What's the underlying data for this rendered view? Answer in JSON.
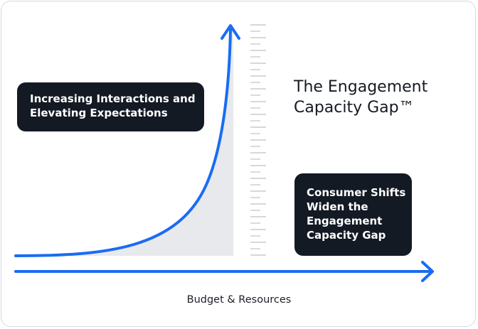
{
  "title": {
    "line1": "The Engagement",
    "line2": "Capacity Gap™"
  },
  "callouts": {
    "left": {
      "line1": "Increasing Interactions and",
      "line2": "Elevating Expectations"
    },
    "right": {
      "line1": "Consumer Shifts",
      "line2": "Widen the",
      "line3": "Engagement",
      "line4": "Capacity Gap"
    }
  },
  "x_axis_label": "Budget & Resources",
  "colors": {
    "axis_blue": "#1a6cf2",
    "callout_bg": "#141a24",
    "gap_fill": "#e8e9ec",
    "ruler_ticks": "#c9ccd1"
  }
}
